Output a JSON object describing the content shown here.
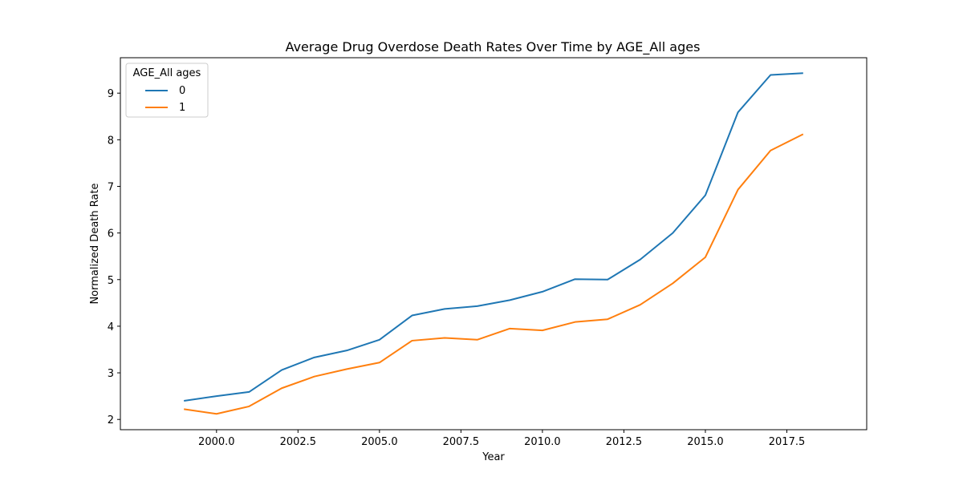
{
  "chart_data": {
    "type": "line",
    "title": "Average Drug Overdose Death Rates Over Time by AGE_All ages",
    "xlabel": "Year",
    "ylabel": "Normalized Death Rate",
    "xlim": [
      1997.05,
      2019.95
    ],
    "ylim": [
      1.78,
      9.76
    ],
    "xticks": [
      2000.0,
      2002.5,
      2005.0,
      2007.5,
      2010.0,
      2012.5,
      2015.0,
      2017.5
    ],
    "xtick_labels": [
      "2000.0",
      "2002.5",
      "2005.0",
      "2007.5",
      "2010.0",
      "2012.5",
      "2015.0",
      "2017.5"
    ],
    "yticks": [
      2,
      3,
      4,
      5,
      6,
      7,
      8,
      9
    ],
    "ytick_labels": [
      "2",
      "3",
      "4",
      "5",
      "6",
      "7",
      "8",
      "9"
    ],
    "grid": false,
    "legend": {
      "title": "AGE_All ages",
      "placement": "top-left"
    },
    "x": [
      1999,
      2000,
      2001,
      2002,
      2003,
      2004,
      2005,
      2006,
      2007,
      2008,
      2009,
      2010,
      2011,
      2012,
      2013,
      2014,
      2015,
      2016,
      2017,
      2018
    ],
    "series": [
      {
        "name": "0",
        "color": "#1f77b4",
        "values": [
          2.4,
          2.5,
          2.59,
          3.06,
          3.33,
          3.48,
          3.71,
          4.23,
          4.37,
          4.43,
          4.56,
          4.74,
          5.01,
          5.0,
          5.43,
          6.0,
          6.81,
          8.59,
          9.39,
          9.43
        ]
      },
      {
        "name": "1",
        "color": "#ff7f0e",
        "values": [
          2.22,
          2.12,
          2.28,
          2.67,
          2.92,
          3.08,
          3.22,
          3.69,
          3.75,
          3.71,
          3.95,
          3.91,
          4.09,
          4.15,
          4.46,
          4.92,
          5.48,
          6.93,
          7.77,
          8.12
        ]
      }
    ]
  }
}
